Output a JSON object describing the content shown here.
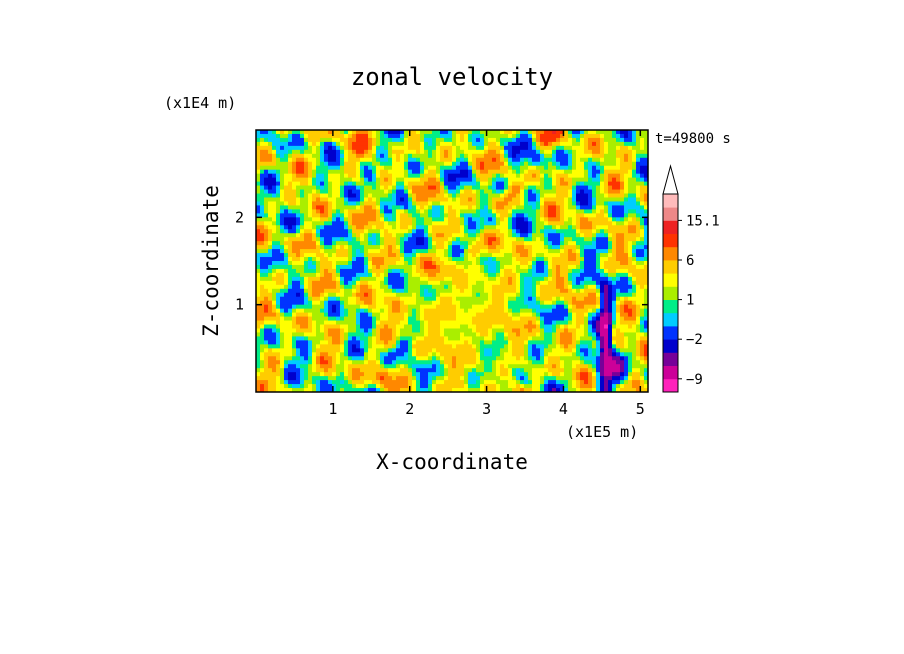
{
  "chart_data": {
    "type": "heatmap",
    "title": "zonal velocity",
    "xlabel": "X-coordinate",
    "ylabel": "Z-coordinate",
    "x_unit": "(x1E5 m)",
    "y_unit": "(x1E4 m)",
    "time_label": "t=49800 s",
    "xlim": [
      0,
      5.1
    ],
    "ylim": [
      0,
      3.0
    ],
    "x_ticks": [
      1,
      2,
      3,
      4,
      5
    ],
    "y_ticks": [
      1,
      2
    ],
    "x_tick_labels": [
      "1",
      "2",
      "3",
      "4",
      "5"
    ],
    "y_tick_labels": [
      "1",
      "2"
    ],
    "colorbar": {
      "levels": [
        -12,
        -9,
        -6,
        -4,
        -2,
        -1,
        0,
        1,
        2,
        4,
        6,
        9,
        12,
        15.1
      ],
      "labeled_values": [
        "15.1",
        "6",
        "1",
        "−2",
        "−9"
      ],
      "colors": [
        "#ff22bb",
        "#cc0099",
        "#770099",
        "#0000cc",
        "#0033ff",
        "#00ccff",
        "#00ee88",
        "#aaee00",
        "#ffff00",
        "#ffcc00",
        "#ff8800",
        "#ff3300",
        "#ee2222",
        "#ee8888",
        "#ffbbbb"
      ],
      "extend_top_arrow": true
    },
    "field_features": [
      {
        "region": "center",
        "sign": "positive",
        "magnitude": "weak"
      },
      {
        "region": "diagonal bands",
        "sign": "mixed",
        "magnitude": "moderate"
      },
      {
        "region": "near x=4.5 lower",
        "sign": "negative",
        "magnitude": "strong"
      }
    ]
  }
}
